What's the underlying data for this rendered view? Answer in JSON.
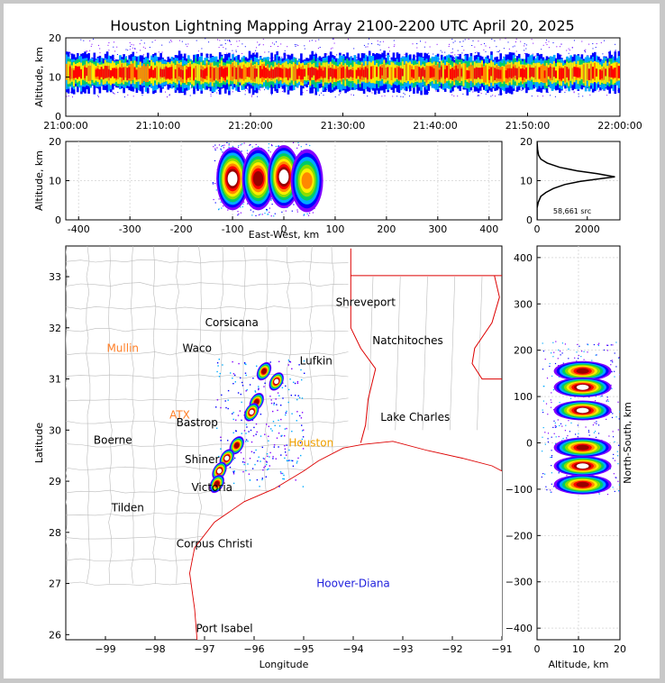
{
  "title": "Houston Lightning Mapping Array 2100-2200 UTC April 20, 2025",
  "colors": {
    "frame_bg": "#c8c8c8",
    "panel_bg": "#ffffff",
    "axis": "#000000",
    "grid": "#dddddd",
    "county_border": "#bbbbbb",
    "state_border": "#dd0000",
    "coastline": "#dd0000",
    "density_ramp": [
      "#8000ff",
      "#0000ff",
      "#00aaff",
      "#00cc66",
      "#88dd00",
      "#ffee00",
      "#ff8800",
      "#ff0000",
      "#990000",
      "#ffffff"
    ]
  },
  "chart_data": [
    {
      "id": "time-altitude",
      "type": "heatmap",
      "title": "",
      "xlabel": "",
      "ylabel": "Altitude, km",
      "x_ticks": [
        "21:00:00",
        "21:10:00",
        "21:20:00",
        "21:30:00",
        "21:40:00",
        "21:50:00",
        "22:00:00"
      ],
      "xlim": [
        "21:00:00",
        "22:00:00"
      ],
      "y_ticks": [
        0,
        10,
        20
      ],
      "ylim": [
        0,
        20
      ],
      "band": {
        "center_km": 11,
        "half_width_km": 3,
        "sparse_extent_km": [
          5,
          20
        ]
      }
    },
    {
      "id": "eastwest-altitude",
      "type": "heatmap",
      "xlabel": "East-West, km",
      "ylabel": "Altitude, km",
      "x_ticks": [
        -400,
        -300,
        -200,
        -100,
        0,
        100,
        200,
        300,
        400
      ],
      "xlim": [
        -425,
        425
      ],
      "y_ticks": [
        0,
        10,
        20
      ],
      "ylim": [
        0,
        20
      ],
      "cells": [
        {
          "x": -100,
          "y": 10.5,
          "level": 9
        },
        {
          "x": -50,
          "y": 10.5,
          "level": 8
        },
        {
          "x": 0,
          "y": 11,
          "level": 9
        },
        {
          "x": 45,
          "y": 10,
          "level": 6
        }
      ]
    },
    {
      "id": "altitude-histogram",
      "type": "line",
      "xlabel": "",
      "ylabel": "",
      "x_ticks": [
        0,
        2000
      ],
      "xlim": [
        0,
        3300
      ],
      "y_ticks": [
        0,
        10,
        20
      ],
      "ylim": [
        0,
        20
      ],
      "annotation": "58,661 src",
      "points": [
        [
          0,
          0
        ],
        [
          0,
          3
        ],
        [
          50,
          4.5
        ],
        [
          150,
          6
        ],
        [
          350,
          7
        ],
        [
          650,
          8
        ],
        [
          1100,
          9
        ],
        [
          1700,
          9.8
        ],
        [
          2400,
          10.4
        ],
        [
          3100,
          11
        ],
        [
          2400,
          11.8
        ],
        [
          1600,
          12.5
        ],
        [
          900,
          13.4
        ],
        [
          400,
          14.5
        ],
        [
          150,
          15.5
        ],
        [
          60,
          16.5
        ],
        [
          20,
          18
        ],
        [
          0,
          20
        ]
      ]
    },
    {
      "id": "map",
      "type": "scatter",
      "xlabel": "Longitude",
      "ylabel": "Latitude",
      "x_ticks": [
        -99,
        -98,
        -97,
        -96,
        -95,
        -94,
        -93,
        -92,
        -91
      ],
      "xlim": [
        -99.8,
        -91
      ],
      "y_ticks": [
        26,
        27,
        28,
        29,
        30,
        31,
        32,
        33
      ],
      "ylim": [
        25.9,
        33.6
      ],
      "places": [
        {
          "name": "Shreveport",
          "lon": -93.75,
          "lat": 32.5,
          "color": "#000000"
        },
        {
          "name": "Corsicana",
          "lon": -96.45,
          "lat": 32.1,
          "color": "#000000"
        },
        {
          "name": "Mullin",
          "lon": -98.65,
          "lat": 31.6,
          "color": "#ff7f27"
        },
        {
          "name": "Waco",
          "lon": -97.15,
          "lat": 31.6,
          "color": "#000000"
        },
        {
          "name": "Natchitoches",
          "lon": -92.9,
          "lat": 31.75,
          "color": "#000000"
        },
        {
          "name": "Lufkin",
          "lon": -94.75,
          "lat": 31.35,
          "color": "#000000"
        },
        {
          "name": "ATX",
          "lon": -97.5,
          "lat": 30.3,
          "color": "#ff7f27"
        },
        {
          "name": "Bastrop",
          "lon": -97.15,
          "lat": 30.15,
          "color": "#000000"
        },
        {
          "name": "Lake Charles",
          "lon": -92.75,
          "lat": 30.25,
          "color": "#000000"
        },
        {
          "name": "Boerne",
          "lon": -98.85,
          "lat": 29.8,
          "color": "#000000"
        },
        {
          "name": "Houston",
          "lon": -94.85,
          "lat": 29.75,
          "color": "#f0a000"
        },
        {
          "name": "Shiner",
          "lon": -97.05,
          "lat": 29.42,
          "color": "#000000"
        },
        {
          "name": "Victoria",
          "lon": -96.85,
          "lat": 28.88,
          "color": "#000000"
        },
        {
          "name": "Tilden",
          "lon": -98.55,
          "lat": 28.48,
          "color": "#000000"
        },
        {
          "name": "Corpus Christi",
          "lon": -96.8,
          "lat": 27.78,
          "color": "#000000"
        },
        {
          "name": "Hoover-Diana",
          "lon": -94.0,
          "lat": 27.0,
          "color": "#2222dd"
        },
        {
          "name": "Port Isabel",
          "lon": -96.6,
          "lat": 26.12,
          "color": "#000000"
        }
      ],
      "cells": [
        {
          "lon": -95.8,
          "lat": 31.15,
          "level": 8
        },
        {
          "lon": -95.55,
          "lat": 30.95,
          "level": 9
        },
        {
          "lon": -95.95,
          "lat": 30.55,
          "level": 8
        },
        {
          "lon": -96.05,
          "lat": 30.35,
          "level": 9
        },
        {
          "lon": -96.35,
          "lat": 29.7,
          "level": 8
        },
        {
          "lon": -96.55,
          "lat": 29.45,
          "level": 9
        },
        {
          "lon": -96.7,
          "lat": 29.2,
          "level": 9
        },
        {
          "lon": -96.75,
          "lat": 28.95,
          "level": 8
        }
      ]
    },
    {
      "id": "altitude-northsouth",
      "type": "heatmap",
      "xlabel": "Altitude, km",
      "ylabel": "North-South, km",
      "x_ticks": [
        0,
        10,
        20
      ],
      "xlim": [
        0,
        20
      ],
      "y_ticks": [
        -400,
        -300,
        -200,
        -100,
        0,
        100,
        200,
        300,
        400
      ],
      "ylim": [
        -425,
        425
      ],
      "cells": [
        {
          "x": 11,
          "y": 155,
          "level": 8
        },
        {
          "x": 11,
          "y": 120,
          "level": 9
        },
        {
          "x": 11,
          "y": 70,
          "level": 9
        },
        {
          "x": 11,
          "y": -10,
          "level": 8
        },
        {
          "x": 11,
          "y": -50,
          "level": 9
        },
        {
          "x": 11,
          "y": -90,
          "level": 8
        }
      ]
    }
  ]
}
